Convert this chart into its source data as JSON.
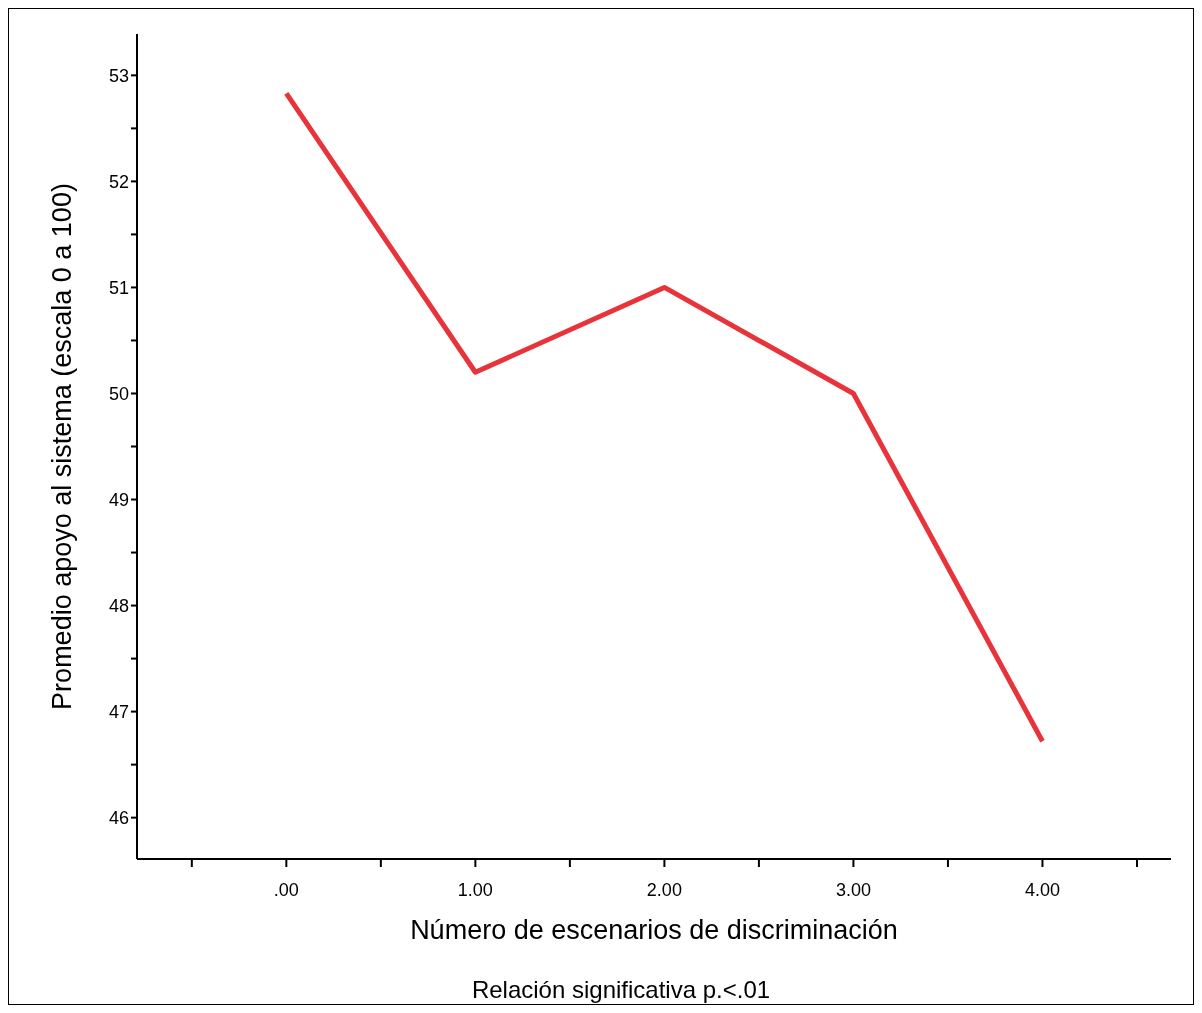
{
  "chart_data": {
    "type": "line",
    "xlabel": "Número de escenarios de discriminación",
    "ylabel": "Promedio apoyo al sistema (escala 0 a 100)",
    "annotations": [
      "Relación significativa p.<.01"
    ],
    "x": [
      0,
      1,
      2,
      3,
      4
    ],
    "series": [
      {
        "color": "#e8333a",
        "values": [
          52.83,
          50.2,
          51.0,
          50.0,
          46.72
        ]
      }
    ],
    "xlim": [
      -0.79,
      4.68
    ],
    "xticks": [
      {
        "value": -0.5,
        "label": null
      },
      {
        "value": 0,
        "label": ".00"
      },
      {
        "value": 0.5,
        "label": null
      },
      {
        "value": 1,
        "label": "1.00"
      },
      {
        "value": 1.5,
        "label": null
      },
      {
        "value": 2,
        "label": "2.00"
      },
      {
        "value": 2.5,
        "label": null
      },
      {
        "value": 3,
        "label": "3.00"
      },
      {
        "value": 3.5,
        "label": null
      },
      {
        "value": 4,
        "label": "4.00"
      },
      {
        "value": 4.5,
        "label": null
      }
    ],
    "ylim": [
      45.61,
      53.39
    ],
    "yticks": [
      46,
      {
        "value": 46.5,
        "label": null
      },
      47,
      {
        "value": 47.5,
        "label": null
      },
      48,
      {
        "value": 48.5,
        "label": null
      },
      49,
      {
        "value": 49.5,
        "label": null
      },
      50,
      {
        "value": 50.5,
        "label": null
      },
      51,
      {
        "value": 51.5,
        "label": null
      },
      52,
      {
        "value": 52.5,
        "label": null
      },
      53
    ],
    "line_style": "solid"
  }
}
